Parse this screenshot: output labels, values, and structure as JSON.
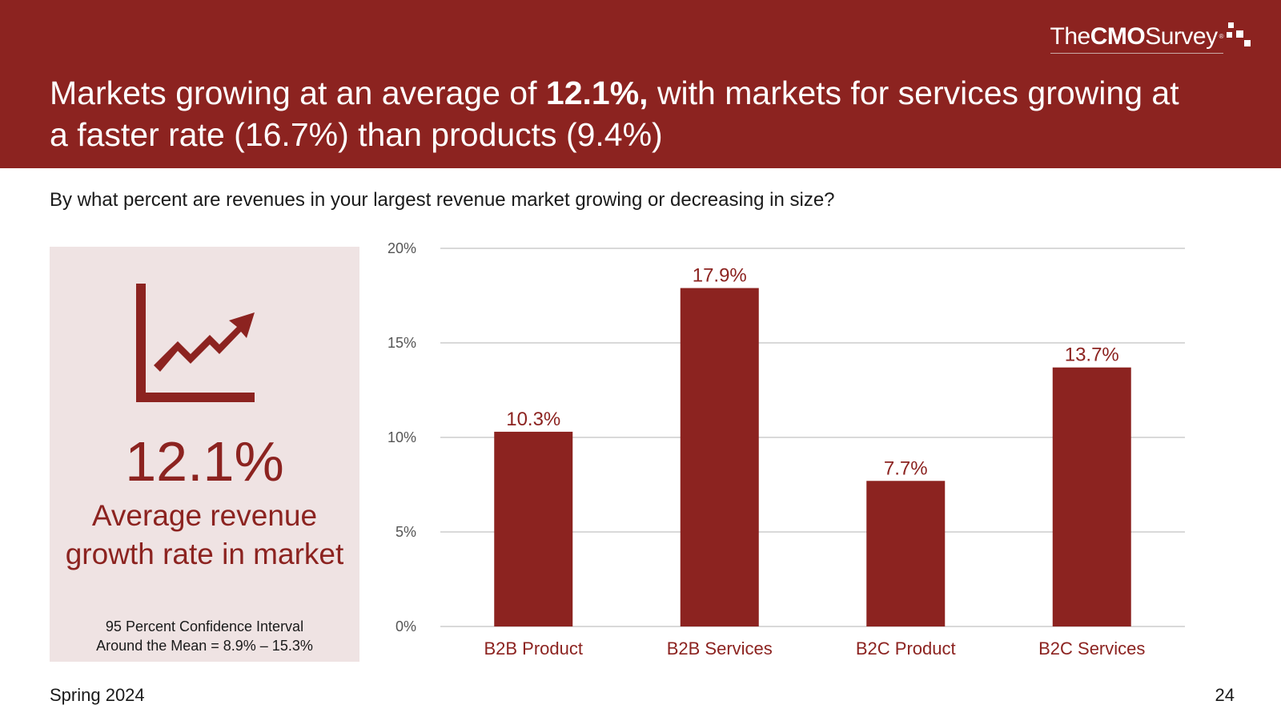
{
  "header": {
    "title_part1": "Markets growing at an average of ",
    "title_bold": "12.1%,",
    "title_part2": " with markets for services growing at a faster rate (16.7%) than products (9.4%)",
    "logo_the": "The",
    "logo_cmo": "CMO",
    "logo_survey": "Survey",
    "logo_reg": "®"
  },
  "question": "By what percent are revenues in your largest revenue market growing or decreasing in size?",
  "stat": {
    "icon": "trend-up-icon",
    "value": "12.1%",
    "label": "Average revenue growth rate in market",
    "ci_line1": "95 Percent Confidence Interval",
    "ci_line2": "Around the Mean = 8.9% – 15.3%"
  },
  "colors": {
    "brand": "#8c2320",
    "panel": "#efe3e3",
    "grid": "#d9d9d9"
  },
  "chart_data": {
    "type": "bar",
    "title": "",
    "xlabel": "",
    "ylabel": "",
    "categories": [
      "B2B Product",
      "B2B Services",
      "B2C Product",
      "B2C Services"
    ],
    "values": [
      10.3,
      17.9,
      7.7,
      13.7
    ],
    "data_labels": [
      "10.3%",
      "17.9%",
      "7.7%",
      "13.7%"
    ],
    "ylim": [
      0,
      20
    ],
    "yticks": [
      0,
      5,
      10,
      15,
      20
    ],
    "ytick_labels": [
      "0%",
      "5%",
      "10%",
      "15%",
      "20%"
    ],
    "grid": true,
    "legend": "none"
  },
  "footer": {
    "season": "Spring 2024",
    "page_number": "24"
  }
}
